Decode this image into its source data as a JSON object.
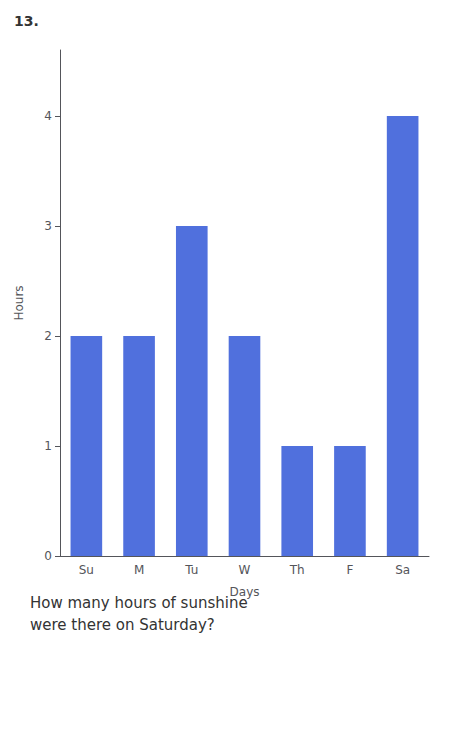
{
  "chart_data": {
    "type": "bar",
    "categories": [
      "Su",
      "M",
      "Tu",
      "W",
      "Th",
      "F",
      "Sa"
    ],
    "values": [
      2,
      2,
      3,
      2,
      1,
      1,
      4
    ],
    "xlabel": "Days",
    "ylabel": "Hours",
    "ylim": [
      0,
      4.6
    ],
    "yticks": [
      0,
      1,
      2,
      3,
      4
    ],
    "grid": false,
    "annotations": [
      "13.",
      "How many hours of sunshine\nwere there on Saturday?"
    ]
  }
}
